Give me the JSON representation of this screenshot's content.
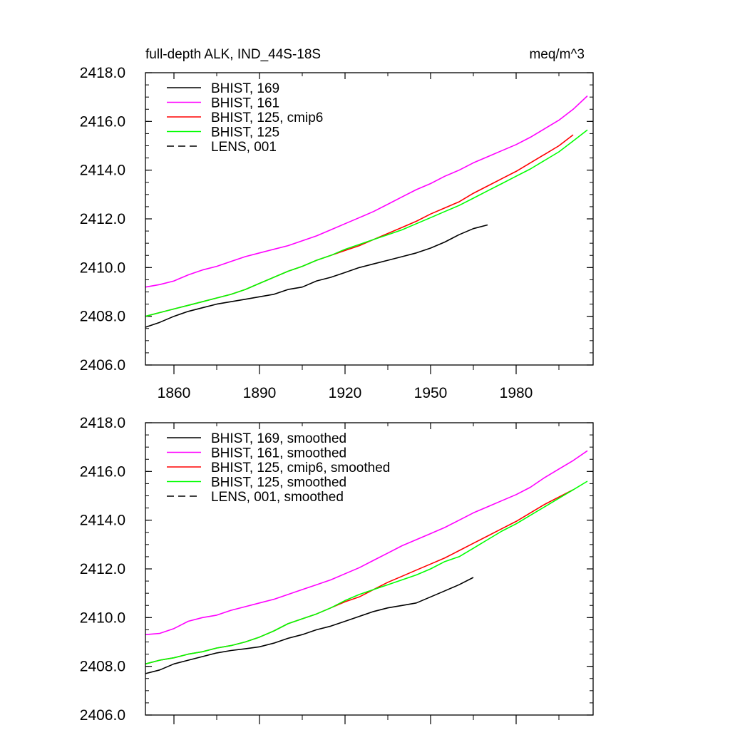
{
  "colors": {
    "black": "#000000",
    "magenta": "#ff00ff",
    "red": "#ff0000",
    "green": "#00ff00"
  },
  "chart_data": [
    {
      "type": "line",
      "title": "full-depth ALK, IND_44S-18S",
      "units": "meq/m^3",
      "xlabel": "",
      "ylabel": "",
      "xlim": [
        1850,
        2007
      ],
      "ylim": [
        2406.0,
        2418.0
      ],
      "yticks": [
        2406.0,
        2408.0,
        2410.0,
        2412.0,
        2414.0,
        2416.0,
        2418.0
      ],
      "ytick_labels": [
        "2406.0",
        "2408.0",
        "2410.0",
        "2412.0",
        "2414.0",
        "2416.0",
        "2418.0"
      ],
      "xticks": [
        1860,
        1890,
        1920,
        1950,
        1980
      ],
      "xtick_labels": [
        "1860",
        "1890",
        "1920",
        "1950",
        "1980"
      ],
      "grid": false,
      "legend_position": "top-left",
      "series": [
        {
          "name": "BHIST, 169",
          "color": "#000000",
          "dash": false,
          "x": [
            1850,
            1855,
            1860,
            1865,
            1870,
            1875,
            1880,
            1885,
            1890,
            1895,
            1900,
            1905,
            1910,
            1915,
            1920,
            1925,
            1930,
            1935,
            1940,
            1945,
            1950,
            1955,
            1960,
            1965,
            1970
          ],
          "y": [
            2407.55,
            2407.75,
            2408.0,
            2408.2,
            2408.35,
            2408.5,
            2408.6,
            2408.7,
            2408.8,
            2408.9,
            2409.1,
            2409.2,
            2409.45,
            2409.6,
            2409.8,
            2410.0,
            2410.15,
            2410.3,
            2410.45,
            2410.6,
            2410.8,
            2411.05,
            2411.35,
            2411.6,
            2411.75
          ]
        },
        {
          "name": "BHIST, 161",
          "color": "#ff00ff",
          "dash": false,
          "x": [
            1850,
            1855,
            1860,
            1865,
            1870,
            1875,
            1880,
            1885,
            1890,
            1895,
            1900,
            1905,
            1910,
            1915,
            1920,
            1925,
            1930,
            1935,
            1940,
            1945,
            1950,
            1955,
            1960,
            1965,
            1970,
            1975,
            1980,
            1985,
            1990,
            1995,
            2000,
            2005
          ],
          "y": [
            2409.2,
            2409.3,
            2409.45,
            2409.7,
            2409.9,
            2410.05,
            2410.25,
            2410.45,
            2410.6,
            2410.75,
            2410.9,
            2411.1,
            2411.3,
            2411.55,
            2411.8,
            2412.05,
            2412.3,
            2412.6,
            2412.9,
            2413.2,
            2413.45,
            2413.75,
            2414.0,
            2414.3,
            2414.55,
            2414.8,
            2415.05,
            2415.35,
            2415.7,
            2416.05,
            2416.5,
            2417.05
          ]
        },
        {
          "name": "BHIST, 125, cmip6",
          "color": "#ff0000",
          "dash": false,
          "x": [
            1850,
            1855,
            1860,
            1865,
            1870,
            1875,
            1880,
            1885,
            1890,
            1895,
            1900,
            1905,
            1910,
            1915,
            1920,
            1925,
            1930,
            1935,
            1940,
            1945,
            1950,
            1955,
            1960,
            1965,
            1970,
            1975,
            1980,
            1985,
            1990,
            1995,
            2000
          ],
          "y": [
            2408.0,
            2408.15,
            2408.3,
            2408.45,
            2408.6,
            2408.75,
            2408.9,
            2409.1,
            2409.35,
            2409.6,
            2409.85,
            2410.05,
            2410.3,
            2410.5,
            2410.7,
            2410.9,
            2411.15,
            2411.4,
            2411.65,
            2411.9,
            2412.2,
            2412.45,
            2412.7,
            2413.05,
            2413.35,
            2413.65,
            2413.95,
            2414.3,
            2414.65,
            2415.0,
            2415.45
          ]
        },
        {
          "name": "BHIST, 125",
          "color": "#00ff00",
          "dash": false,
          "x": [
            1850,
            1855,
            1860,
            1865,
            1870,
            1875,
            1880,
            1885,
            1890,
            1895,
            1900,
            1905,
            1910,
            1915,
            1920,
            1925,
            1930,
            1935,
            1940,
            1945,
            1950,
            1955,
            1960,
            1965,
            1970,
            1975,
            1980,
            1985,
            1990,
            1995,
            2000,
            2005
          ],
          "y": [
            2408.0,
            2408.15,
            2408.3,
            2408.45,
            2408.6,
            2408.75,
            2408.9,
            2409.1,
            2409.35,
            2409.6,
            2409.85,
            2410.05,
            2410.3,
            2410.5,
            2410.75,
            2410.95,
            2411.15,
            2411.35,
            2411.55,
            2411.8,
            2412.05,
            2412.3,
            2412.55,
            2412.85,
            2413.15,
            2413.45,
            2413.75,
            2414.05,
            2414.4,
            2414.75,
            2415.2,
            2415.65
          ]
        },
        {
          "name": "LENS, 001",
          "color": "#000000",
          "dash": true,
          "x": [],
          "y": []
        }
      ]
    },
    {
      "type": "line",
      "title": "",
      "units": "",
      "xlabel": "",
      "ylabel": "",
      "xlim": [
        1850,
        2007
      ],
      "ylim": [
        2406.0,
        2418.0
      ],
      "yticks": [
        2406.0,
        2408.0,
        2410.0,
        2412.0,
        2414.0,
        2416.0,
        2418.0
      ],
      "ytick_labels": [
        "2406.0",
        "2408.0",
        "2410.0",
        "2412.0",
        "2414.0",
        "2416.0",
        "2418.0"
      ],
      "xticks": [
        1860,
        1890,
        1920,
        1950,
        1980
      ],
      "xtick_labels": [],
      "grid": false,
      "legend_position": "top-left",
      "series": [
        {
          "name": "BHIST, 169, smoothed",
          "color": "#000000",
          "dash": false,
          "x": [
            1850,
            1855,
            1860,
            1865,
            1870,
            1875,
            1880,
            1885,
            1890,
            1895,
            1900,
            1905,
            1910,
            1915,
            1920,
            1925,
            1930,
            1935,
            1940,
            1945,
            1950,
            1955,
            1960,
            1965
          ],
          "y": [
            2407.7,
            2407.85,
            2408.1,
            2408.25,
            2408.4,
            2408.55,
            2408.65,
            2408.72,
            2408.8,
            2408.95,
            2409.15,
            2409.3,
            2409.5,
            2409.65,
            2409.85,
            2410.05,
            2410.25,
            2410.4,
            2410.5,
            2410.6,
            2410.85,
            2411.1,
            2411.35,
            2411.65
          ]
        },
        {
          "name": "BHIST, 161, smoothed",
          "color": "#ff00ff",
          "dash": false,
          "x": [
            1850,
            1855,
            1860,
            1865,
            1870,
            1875,
            1880,
            1885,
            1890,
            1895,
            1900,
            1905,
            1910,
            1915,
            1920,
            1925,
            1930,
            1935,
            1940,
            1945,
            1950,
            1955,
            1960,
            1965,
            1970,
            1975,
            1980,
            1985,
            1990,
            1995,
            2000,
            2005
          ],
          "y": [
            2409.3,
            2409.35,
            2409.55,
            2409.85,
            2410.0,
            2410.1,
            2410.3,
            2410.45,
            2410.6,
            2410.75,
            2410.95,
            2411.15,
            2411.35,
            2411.55,
            2411.8,
            2412.05,
            2412.35,
            2412.65,
            2412.95,
            2413.2,
            2413.45,
            2413.7,
            2414.0,
            2414.3,
            2414.55,
            2414.8,
            2415.05,
            2415.35,
            2415.75,
            2416.1,
            2416.45,
            2416.85
          ]
        },
        {
          "name": "BHIST, 125, cmip6, smoothed",
          "color": "#ff0000",
          "dash": false,
          "x": [
            1850,
            1855,
            1860,
            1865,
            1870,
            1875,
            1880,
            1885,
            1890,
            1895,
            1900,
            1905,
            1910,
            1915,
            1920,
            1925,
            1930,
            1935,
            1940,
            1945,
            1950,
            1955,
            1960,
            1965,
            1970,
            1975,
            1980,
            1985,
            1990,
            1995,
            2000
          ],
          "y": [
            2408.1,
            2408.25,
            2408.35,
            2408.5,
            2408.6,
            2408.75,
            2408.85,
            2409.0,
            2409.2,
            2409.45,
            2409.75,
            2409.95,
            2410.15,
            2410.4,
            2410.65,
            2410.85,
            2411.15,
            2411.45,
            2411.7,
            2411.95,
            2412.2,
            2412.45,
            2412.75,
            2413.05,
            2413.35,
            2413.65,
            2413.95,
            2414.3,
            2414.65,
            2414.95,
            2415.25
          ]
        },
        {
          "name": "BHIST, 125, smoothed",
          "color": "#00ff00",
          "dash": false,
          "x": [
            1850,
            1855,
            1860,
            1865,
            1870,
            1875,
            1880,
            1885,
            1890,
            1895,
            1900,
            1905,
            1910,
            1915,
            1920,
            1925,
            1930,
            1935,
            1940,
            1945,
            1950,
            1955,
            1960,
            1965,
            1970,
            1975,
            1980,
            1985,
            1990,
            1995,
            2000,
            2005
          ],
          "y": [
            2408.1,
            2408.25,
            2408.35,
            2408.5,
            2408.6,
            2408.75,
            2408.85,
            2409.0,
            2409.2,
            2409.45,
            2409.75,
            2409.95,
            2410.15,
            2410.4,
            2410.7,
            2410.95,
            2411.15,
            2411.35,
            2411.55,
            2411.75,
            2412.0,
            2412.3,
            2412.5,
            2412.85,
            2413.2,
            2413.55,
            2413.85,
            2414.2,
            2414.55,
            2414.9,
            2415.25,
            2415.6
          ]
        },
        {
          "name": "LENS, 001, smoothed",
          "color": "#000000",
          "dash": true,
          "x": [],
          "y": []
        }
      ]
    }
  ]
}
